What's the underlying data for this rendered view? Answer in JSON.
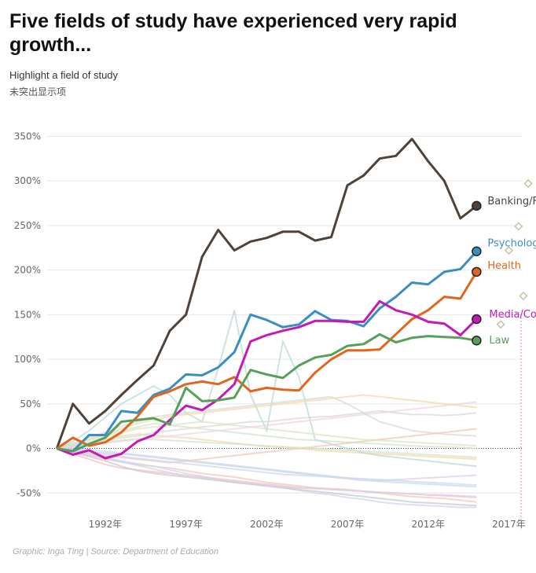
{
  "header": {
    "title": "Five fields of study have experienced very rapid growth...",
    "filter_label": "Highlight a field of study",
    "filter_value": "未突出显示项"
  },
  "footer": "Graphic: Inga Ting | Source: Department of Education",
  "colors": {
    "banking": "#4e4239",
    "psychology": "#3b8ec2",
    "health": "#e0661e",
    "media": "#c21ab5",
    "law": "#58a05a",
    "grid": "#e6e6e6",
    "background_lines": [
      "#d9d9d9",
      "#f2c9b7",
      "#cdd8ee",
      "#f5d9a6",
      "#d8d0e8",
      "#cfe6cf",
      "#f2c2c8",
      "#bcd9d9",
      "#e2e2c6",
      "#c9c9c9",
      "#f0d4e6",
      "#c6dcef"
    ]
  },
  "chart_data": {
    "type": "line",
    "title": "Five fields of study have experienced very rapid growth...",
    "xlabel": "",
    "ylabel": "",
    "x": [
      1989,
      1990,
      1991,
      1992,
      1993,
      1994,
      1995,
      1996,
      1997,
      1998,
      1999,
      2000,
      2001,
      2002,
      2003,
      2004,
      2005,
      2006,
      2007,
      2008,
      2009,
      2010,
      2011,
      2012,
      2013,
      2014,
      2015
    ],
    "xlim": [
      1988.5,
      2018
    ],
    "ylim": [
      -70,
      360
    ],
    "xticks": [
      1992,
      1997,
      2002,
      2007,
      2012,
      2017
    ],
    "xtick_labels": [
      "1992年",
      "1997年",
      "2002年",
      "2007年",
      "2012年",
      "2017年"
    ],
    "yticks": [
      -50,
      0,
      50,
      100,
      150,
      200,
      250,
      300,
      350
    ],
    "ytick_labels": [
      "-50%",
      "0%",
      "50%",
      "100%",
      "150%",
      "200%",
      "250%",
      "300%",
      "350%"
    ],
    "series": [
      {
        "name": "Banking/Finance",
        "color_key": "banking",
        "values": [
          0,
          50,
          28,
          42,
          60,
          77,
          93,
          132,
          150,
          215,
          245,
          222,
          232,
          236,
          243,
          243,
          233,
          237,
          295,
          306,
          325,
          328,
          347,
          322,
          300,
          258,
          272
        ]
      },
      {
        "name": "Psychology",
        "color_key": "psychology",
        "values": [
          0,
          -3,
          15,
          15,
          42,
          40,
          60,
          67,
          83,
          82,
          91,
          108,
          150,
          144,
          136,
          139,
          154,
          144,
          143,
          137,
          157,
          170,
          186,
          184,
          198,
          201,
          221
        ]
      },
      {
        "name": "Health",
        "color_key": "health",
        "values": [
          0,
          12,
          3,
          7,
          18,
          36,
          58,
          64,
          72,
          75,
          72,
          80,
          64,
          68,
          66,
          65,
          85,
          100,
          110,
          110,
          111,
          128,
          145,
          155,
          170,
          168,
          198
        ]
      },
      {
        "name": "Media/Comms",
        "color_key": "media",
        "values": [
          0,
          -7,
          -2,
          -11,
          -6,
          8,
          15,
          32,
          48,
          43,
          55,
          72,
          120,
          127,
          132,
          136,
          143,
          143,
          142,
          142,
          165,
          155,
          150,
          142,
          140,
          127,
          145
        ]
      },
      {
        "name": "Law",
        "color_key": "law",
        "values": [
          0,
          -3,
          5,
          12,
          30,
          32,
          34,
          27,
          68,
          53,
          54,
          57,
          88,
          83,
          79,
          93,
          102,
          105,
          115,
          117,
          128,
          119,
          124,
          126,
          125,
          124,
          121
        ]
      }
    ],
    "other_series": [
      [
        0,
        2,
        5,
        8,
        12,
        14,
        18,
        20,
        22,
        24,
        26,
        28,
        30,
        30,
        32,
        34,
        35,
        36,
        38,
        40,
        42,
        40,
        38,
        38,
        37,
        38,
        40
      ],
      [
        0,
        -5,
        -8,
        -12,
        -15,
        -18,
        -20,
        -22,
        -25,
        -28,
        -30,
        -32,
        -35,
        -38,
        -40,
        -42,
        -44,
        -45,
        -46,
        -48,
        -50,
        -52,
        -54,
        -55,
        -56,
        -58,
        -60
      ],
      [
        0,
        -3,
        -6,
        -10,
        -14,
        -17,
        -20,
        -24,
        -28,
        -31,
        -35,
        -38,
        -40,
        -42,
        -44,
        -47,
        -50,
        -52,
        -55,
        -57,
        -60,
        -62,
        -63,
        -64,
        -65,
        -66,
        -66
      ],
      [
        0,
        4,
        6,
        10,
        14,
        16,
        15,
        13,
        12,
        10,
        8,
        6,
        4,
        2,
        1,
        0,
        -2,
        -3,
        -4,
        -5,
        -6,
        -7,
        -8,
        -9,
        -10,
        -11,
        -12
      ],
      [
        0,
        -2,
        -4,
        -5,
        -6,
        -8,
        -10,
        -12,
        -14,
        -16,
        -18,
        -20,
        -22,
        -24,
        -26,
        -28,
        -30,
        -32,
        -34,
        -36,
        -36,
        -35,
        -34,
        -33,
        -32,
        -31,
        -30
      ],
      [
        0,
        6,
        10,
        14,
        20,
        24,
        28,
        26,
        24,
        22,
        20,
        18,
        16,
        14,
        12,
        10,
        9,
        8,
        7,
        6,
        5,
        4,
        3,
        2,
        2,
        1,
        0
      ],
      [
        0,
        -6,
        -12,
        -18,
        -22,
        -24,
        -26,
        -28,
        -30,
        -32,
        -34,
        -36,
        -38,
        -40,
        -42,
        -44,
        -45,
        -46,
        -47,
        -48,
        -49,
        -50,
        -51,
        -52,
        -53,
        -54,
        -55
      ],
      [
        0,
        8,
        20,
        35,
        50,
        60,
        70,
        60,
        40,
        30,
        90,
        155,
        60,
        20,
        120,
        80,
        10,
        5,
        0,
        -5,
        -8,
        -10,
        -12,
        -14,
        -16,
        -18,
        -20
      ],
      [
        0,
        3,
        8,
        12,
        18,
        22,
        24,
        26,
        28,
        30,
        28,
        26,
        24,
        22,
        20,
        18,
        16,
        14,
        12,
        10,
        9,
        8,
        7,
        6,
        5,
        4,
        3
      ],
      [
        0,
        -4,
        -9,
        -14,
        -20,
        -25,
        -28,
        -30,
        -32,
        -34,
        -36,
        -38,
        -40,
        -42,
        -44,
        -46,
        -48,
        -50,
        -52,
        -54,
        -56,
        -58,
        -60,
        -61,
        -62,
        -63,
        -64
      ],
      [
        0,
        2,
        4,
        6,
        8,
        10,
        12,
        14,
        16,
        18,
        20,
        22,
        24,
        26,
        28,
        30,
        32,
        34,
        36,
        38,
        40,
        42,
        44,
        46,
        48,
        50,
        52
      ],
      [
        0,
        -1,
        -2,
        -3,
        -5,
        -7,
        -9,
        -11,
        -13,
        -15,
        -17,
        -19,
        -21,
        -23,
        -25,
        -27,
        -29,
        -31,
        -33,
        -35,
        -37,
        -38,
        -39,
        -40,
        -41,
        -42,
        -43
      ],
      [
        0,
        5,
        12,
        18,
        25,
        30,
        35,
        38,
        40,
        42,
        44,
        46,
        48,
        50,
        52,
        54,
        56,
        58,
        50,
        40,
        30,
        25,
        20,
        18,
        16,
        15,
        14
      ],
      [
        0,
        -2,
        -5,
        -8,
        -10,
        -12,
        -14,
        -16,
        -14,
        -12,
        -10,
        -8,
        -6,
        -4,
        -2,
        0,
        2,
        4,
        6,
        8,
        10,
        12,
        14,
        16,
        18,
        20,
        22
      ],
      [
        0,
        1,
        -3,
        -6,
        -9,
        -11,
        -13,
        -15,
        -17,
        -19,
        -21,
        -23,
        -25,
        -27,
        -29,
        -30,
        -31,
        -32,
        -33,
        -34,
        -35,
        -36,
        -37,
        -38,
        -39,
        -40,
        -41
      ],
      [
        0,
        4,
        10,
        16,
        22,
        28,
        32,
        36,
        38,
        40,
        42,
        44,
        46,
        48,
        50,
        52,
        54,
        56,
        58,
        60,
        58,
        56,
        54,
        52,
        50,
        48,
        46
      ],
      [
        0,
        -3,
        -7,
        -11,
        -15,
        -19,
        -23,
        -27,
        -31,
        -33,
        -35,
        -37,
        -39,
        -41,
        -43,
        -44,
        -45,
        -46,
        -47,
        -48,
        -49,
        -50,
        -51,
        -52,
        -52,
        -53,
        -54
      ],
      [
        0,
        3,
        5,
        7,
        9,
        11,
        10,
        9,
        8,
        7,
        6,
        5,
        4,
        3,
        2,
        1,
        0,
        -1,
        -2,
        -3,
        -4,
        -5,
        -6,
        -7,
        -8,
        -9,
        -10
      ]
    ],
    "ghost_markers": [
      {
        "year": 2018.2,
        "value": 297
      },
      {
        "year": 2017.6,
        "value": 249
      },
      {
        "year": 2017.0,
        "value": 222
      },
      {
        "year": 2017.9,
        "value": 171
      },
      {
        "year": 2016.5,
        "value": 139
      }
    ]
  }
}
